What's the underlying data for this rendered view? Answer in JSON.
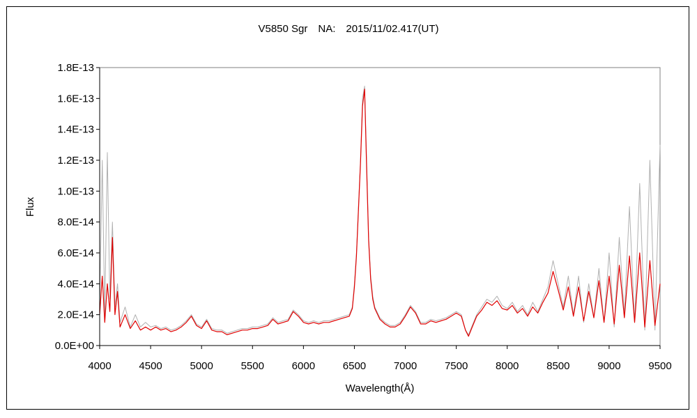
{
  "chart_data": {
    "type": "line",
    "title": "V5850 Sgr　NA:　2015/11/02.417(UT)",
    "xlabel": "Wavelength(Å)",
    "ylabel": "Flux",
    "xlim": [
      4000,
      9500
    ],
    "ylim": [
      0,
      1.8e-13
    ],
    "x_ticks": [
      4000,
      4500,
      5000,
      5500,
      6000,
      6500,
      7000,
      7500,
      8000,
      8500,
      9000,
      9500
    ],
    "x_tick_labels": [
      "4000",
      "4500",
      "5000",
      "5500",
      "6000",
      "6500",
      "7000",
      "7500",
      "8000",
      "8500",
      "9000",
      "9500"
    ],
    "y_ticks": [
      0,
      2e-14,
      4e-14,
      6e-14,
      8e-14,
      1e-13,
      1.2e-13,
      1.4e-13,
      1.6e-13,
      1.8e-13
    ],
    "y_tick_labels": [
      "0.0E+00",
      "2.0E-14",
      "4.0E-14",
      "6.0E-14",
      "8.0E-14",
      "1.0E-13",
      "1.2E-13",
      "1.4E-13",
      "1.6E-13",
      "1.8E-13"
    ],
    "grid": false,
    "legend": "none",
    "series": [
      {
        "color": "#b0b0b0",
        "x": [
          4000,
          4025,
          4050,
          4075,
          4100,
          4125,
          4150,
          4175,
          4200,
          4250,
          4300,
          4350,
          4400,
          4450,
          4500,
          4550,
          4600,
          4650,
          4700,
          4750,
          4800,
          4850,
          4900,
          4950,
          5000,
          5050,
          5100,
          5150,
          5200,
          5250,
          5300,
          5350,
          5400,
          5450,
          5500,
          5550,
          5600,
          5650,
          5700,
          5750,
          5800,
          5850,
          5900,
          5950,
          6000,
          6050,
          6100,
          6150,
          6200,
          6250,
          6300,
          6350,
          6400,
          6450,
          6480,
          6500,
          6520,
          6540,
          6560,
          6580,
          6600,
          6620,
          6640,
          6660,
          6680,
          6700,
          6750,
          6800,
          6850,
          6900,
          6950,
          7000,
          7050,
          7100,
          7150,
          7200,
          7250,
          7300,
          7350,
          7400,
          7450,
          7500,
          7550,
          7590,
          7620,
          7650,
          7700,
          7750,
          7800,
          7850,
          7900,
          7950,
          8000,
          8050,
          8100,
          8150,
          8200,
          8250,
          8300,
          8350,
          8400,
          8450,
          8500,
          8550,
          8600,
          8650,
          8700,
          8750,
          8800,
          8850,
          8900,
          8950,
          9000,
          9050,
          9100,
          9150,
          9200,
          9250,
          9300,
          9350,
          9400,
          9450,
          9500
        ],
        "y": [
          2.5e-14,
          1.2e-13,
          2e-14,
          1.25e-13,
          3e-14,
          8e-14,
          2.5e-14,
          4e-14,
          1.5e-14,
          2.5e-14,
          1.2e-14,
          2e-14,
          1.2e-14,
          1.5e-14,
          1.2e-14,
          1.3e-14,
          1.1e-14,
          1.2e-14,
          1e-14,
          1.1e-14,
          1.3e-14,
          1.6e-14,
          2e-14,
          1.4e-14,
          1.2e-14,
          1.7e-14,
          1.1e-14,
          1e-14,
          1e-14,
          8e-15,
          9e-15,
          1e-14,
          1.1e-14,
          1.1e-14,
          1.2e-14,
          1.2e-14,
          1.3e-14,
          1.4e-14,
          1.8e-14,
          1.5e-14,
          1.6e-14,
          1.7e-14,
          2.3e-14,
          2e-14,
          1.6e-14,
          1.5e-14,
          1.6e-14,
          1.5e-14,
          1.6e-14,
          1.6e-14,
          1.7e-14,
          1.8e-14,
          1.9e-14,
          2e-14,
          2.5e-14,
          4e-14,
          6e-14,
          9e-14,
          1.2e-13,
          1.6e-13,
          1.68e-13,
          1.2e-13,
          7e-14,
          4.5e-14,
          3.2e-14,
          2.5e-14,
          1.8e-14,
          1.5e-14,
          1.3e-14,
          1.3e-14,
          1.5e-14,
          2e-14,
          2.6e-14,
          2.2e-14,
          1.5e-14,
          1.5e-14,
          1.7e-14,
          1.6e-14,
          1.7e-14,
          1.8e-14,
          2e-14,
          2.2e-14,
          2e-14,
          1e-14,
          7e-15,
          1.2e-14,
          2e-14,
          2.5e-14,
          3e-14,
          2.8e-14,
          3.2e-14,
          2.6e-14,
          2.4e-14,
          2.8e-14,
          2.2e-14,
          2.6e-14,
          2e-14,
          2.8e-14,
          2.2e-14,
          3e-14,
          3.8e-14,
          5.5e-14,
          4e-14,
          2.5e-14,
          4.5e-14,
          2e-14,
          4.5e-14,
          1.5e-14,
          4e-14,
          1.8e-14,
          5e-14,
          1.5e-14,
          6e-14,
          1.2e-14,
          7e-14,
          2e-14,
          9e-14,
          1.5e-14,
          1.05e-13,
          1e-14,
          1.2e-13,
          1e-14,
          1.3e-13
        ]
      },
      {
        "color": "#e00000",
        "x": [
          4000,
          4025,
          4050,
          4075,
          4100,
          4125,
          4150,
          4175,
          4200,
          4250,
          4300,
          4350,
          4400,
          4450,
          4500,
          4550,
          4600,
          4650,
          4700,
          4750,
          4800,
          4850,
          4900,
          4950,
          5000,
          5050,
          5100,
          5150,
          5200,
          5250,
          5300,
          5350,
          5400,
          5450,
          5500,
          5550,
          5600,
          5650,
          5700,
          5750,
          5800,
          5850,
          5900,
          5950,
          6000,
          6050,
          6100,
          6150,
          6200,
          6250,
          6300,
          6350,
          6400,
          6450,
          6480,
          6500,
          6520,
          6540,
          6560,
          6580,
          6600,
          6620,
          6640,
          6660,
          6680,
          6700,
          6750,
          6800,
          6850,
          6900,
          6950,
          7000,
          7050,
          7100,
          7150,
          7200,
          7250,
          7300,
          7350,
          7400,
          7450,
          7500,
          7550,
          7590,
          7620,
          7650,
          7700,
          7750,
          7800,
          7850,
          7900,
          7950,
          8000,
          8050,
          8100,
          8150,
          8200,
          8250,
          8300,
          8350,
          8400,
          8450,
          8500,
          8550,
          8600,
          8650,
          8700,
          8750,
          8800,
          8850,
          8900,
          8950,
          9000,
          9050,
          9100,
          9150,
          9200,
          9250,
          9300,
          9350,
          9400,
          9450,
          9500
        ],
        "y": [
          2e-14,
          4.5e-14,
          1.5e-14,
          4e-14,
          2.2e-14,
          7e-14,
          2e-14,
          3.5e-14,
          1.2e-14,
          2e-14,
          1.1e-14,
          1.6e-14,
          1e-14,
          1.2e-14,
          1e-14,
          1.2e-14,
          1e-14,
          1.1e-14,
          9e-15,
          1e-14,
          1.2e-14,
          1.5e-14,
          1.9e-14,
          1.3e-14,
          1.1e-14,
          1.6e-14,
          1e-14,
          9e-15,
          9e-15,
          7e-15,
          8e-15,
          9e-15,
          1e-14,
          1e-14,
          1.1e-14,
          1.1e-14,
          1.2e-14,
          1.3e-14,
          1.7e-14,
          1.4e-14,
          1.5e-14,
          1.6e-14,
          2.2e-14,
          1.9e-14,
          1.5e-14,
          1.4e-14,
          1.5e-14,
          1.4e-14,
          1.5e-14,
          1.5e-14,
          1.6e-14,
          1.7e-14,
          1.8e-14,
          1.9e-14,
          2.4e-14,
          3.8e-14,
          5.8e-14,
          8.8e-14,
          1.18e-13,
          1.55e-13,
          1.66e-13,
          1.15e-13,
          6.8e-14,
          4.3e-14,
          3e-14,
          2.4e-14,
          1.7e-14,
          1.4e-14,
          1.2e-14,
          1.2e-14,
          1.4e-14,
          1.9e-14,
          2.5e-14,
          2.1e-14,
          1.4e-14,
          1.4e-14,
          1.6e-14,
          1.5e-14,
          1.6e-14,
          1.7e-14,
          1.9e-14,
          2.1e-14,
          1.9e-14,
          1e-14,
          6e-15,
          1.1e-14,
          1.9e-14,
          2.3e-14,
          2.8e-14,
          2.6e-14,
          2.9e-14,
          2.4e-14,
          2.3e-14,
          2.6e-14,
          2.1e-14,
          2.4e-14,
          1.9e-14,
          2.5e-14,
          2.1e-14,
          2.8e-14,
          3.4e-14,
          4.8e-14,
          3.6e-14,
          2.3e-14,
          3.8e-14,
          1.9e-14,
          3.8e-14,
          1.6e-14,
          3.5e-14,
          1.8e-14,
          4.2e-14,
          1.5e-14,
          4.5e-14,
          1.4e-14,
          5.2e-14,
          1.8e-14,
          5.8e-14,
          1.5e-14,
          6e-14,
          1.2e-14,
          5.5e-14,
          1.3e-14,
          4e-14
        ]
      }
    ]
  }
}
